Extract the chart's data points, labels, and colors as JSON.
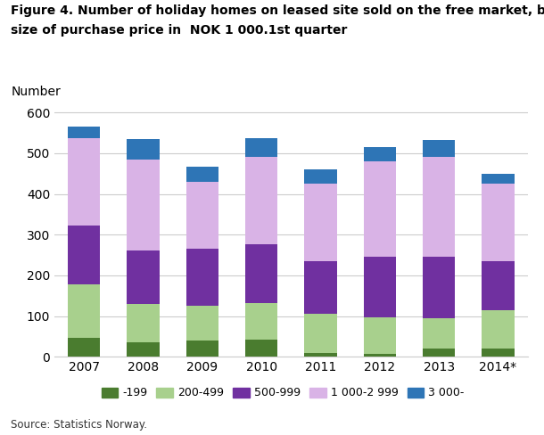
{
  "title_line1": "Figure 4. Number of holiday homes on leased site sold on the free market, by",
  "title_line2": "size of purchase price in  NOK 1 000.1st quarter",
  "ylabel": "Number",
  "source": "Source: Statistics Norway.",
  "categories": [
    "2007",
    "2008",
    "2009",
    "2010",
    "2011",
    "2012",
    "2013",
    "2014*"
  ],
  "series": {
    "-199": [
      47,
      35,
      40,
      42,
      10,
      8,
      20,
      20
    ],
    "200-499": [
      130,
      95,
      85,
      90,
      95,
      88,
      75,
      95
    ],
    "500-999": [
      145,
      130,
      140,
      145,
      130,
      150,
      150,
      120
    ],
    "1 000-2 999": [
      215,
      225,
      165,
      215,
      190,
      235,
      245,
      190
    ],
    "3 000-": [
      28,
      50,
      37,
      45,
      35,
      35,
      43,
      25
    ]
  },
  "colors": {
    "-199": "#4a7c2f",
    "200-499": "#a8d08d",
    "500-999": "#7030a0",
    "1 000-2 999": "#d9b3e6",
    "3 000-": "#2e75b6"
  },
  "ylim": [
    0,
    620
  ],
  "yticks": [
    0,
    100,
    200,
    300,
    400,
    500,
    600
  ],
  "legend_order": [
    "-199",
    "200-499",
    "500-999",
    "1 000-2 999",
    "3 000-"
  ],
  "background_color": "#ffffff",
  "grid_color": "#cccccc"
}
